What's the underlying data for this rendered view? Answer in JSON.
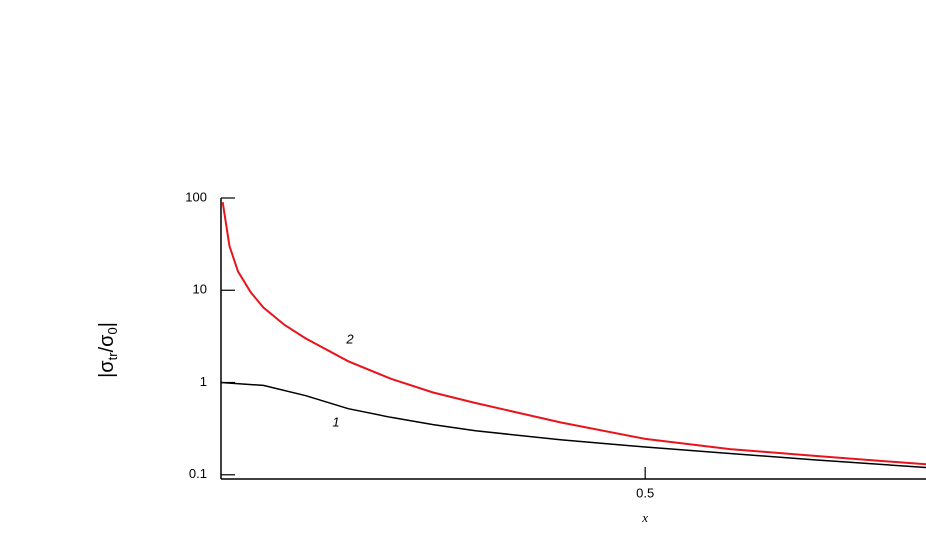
{
  "chart_data": {
    "type": "line",
    "ylabel": [
      "|σ",
      "tr",
      "/σ",
      "0",
      "|"
    ],
    "xlabel": "x",
    "xlim": [
      0,
      0.831
    ],
    "ylim": [
      0.09,
      100
    ],
    "ylog": true,
    "xticks": [
      0.5
    ],
    "yticks": [
      0.1,
      1,
      10,
      100
    ],
    "series": [
      {
        "name": "1",
        "color": "#000000",
        "x": [
          0,
          0.05,
          0.1,
          0.15,
          0.2,
          0.25,
          0.3,
          0.4,
          0.5,
          0.6,
          0.7,
          0.831
        ],
        "values": [
          1,
          0.93,
          0.72,
          0.52,
          0.42,
          0.35,
          0.3,
          0.24,
          0.2,
          0.17,
          0.145,
          0.12
        ]
      },
      {
        "name": "2",
        "color": "#e8141c",
        "x": [
          0.002,
          0.01,
          0.02,
          0.035,
          0.05,
          0.075,
          0.1,
          0.15,
          0.2,
          0.25,
          0.3,
          0.4,
          0.5,
          0.6,
          0.7,
          0.831
        ],
        "values": [
          90,
          30,
          16,
          9.5,
          6.5,
          4.2,
          3.0,
          1.7,
          1.1,
          0.78,
          0.6,
          0.37,
          0.245,
          0.19,
          0.16,
          0.13
        ]
      }
    ]
  }
}
